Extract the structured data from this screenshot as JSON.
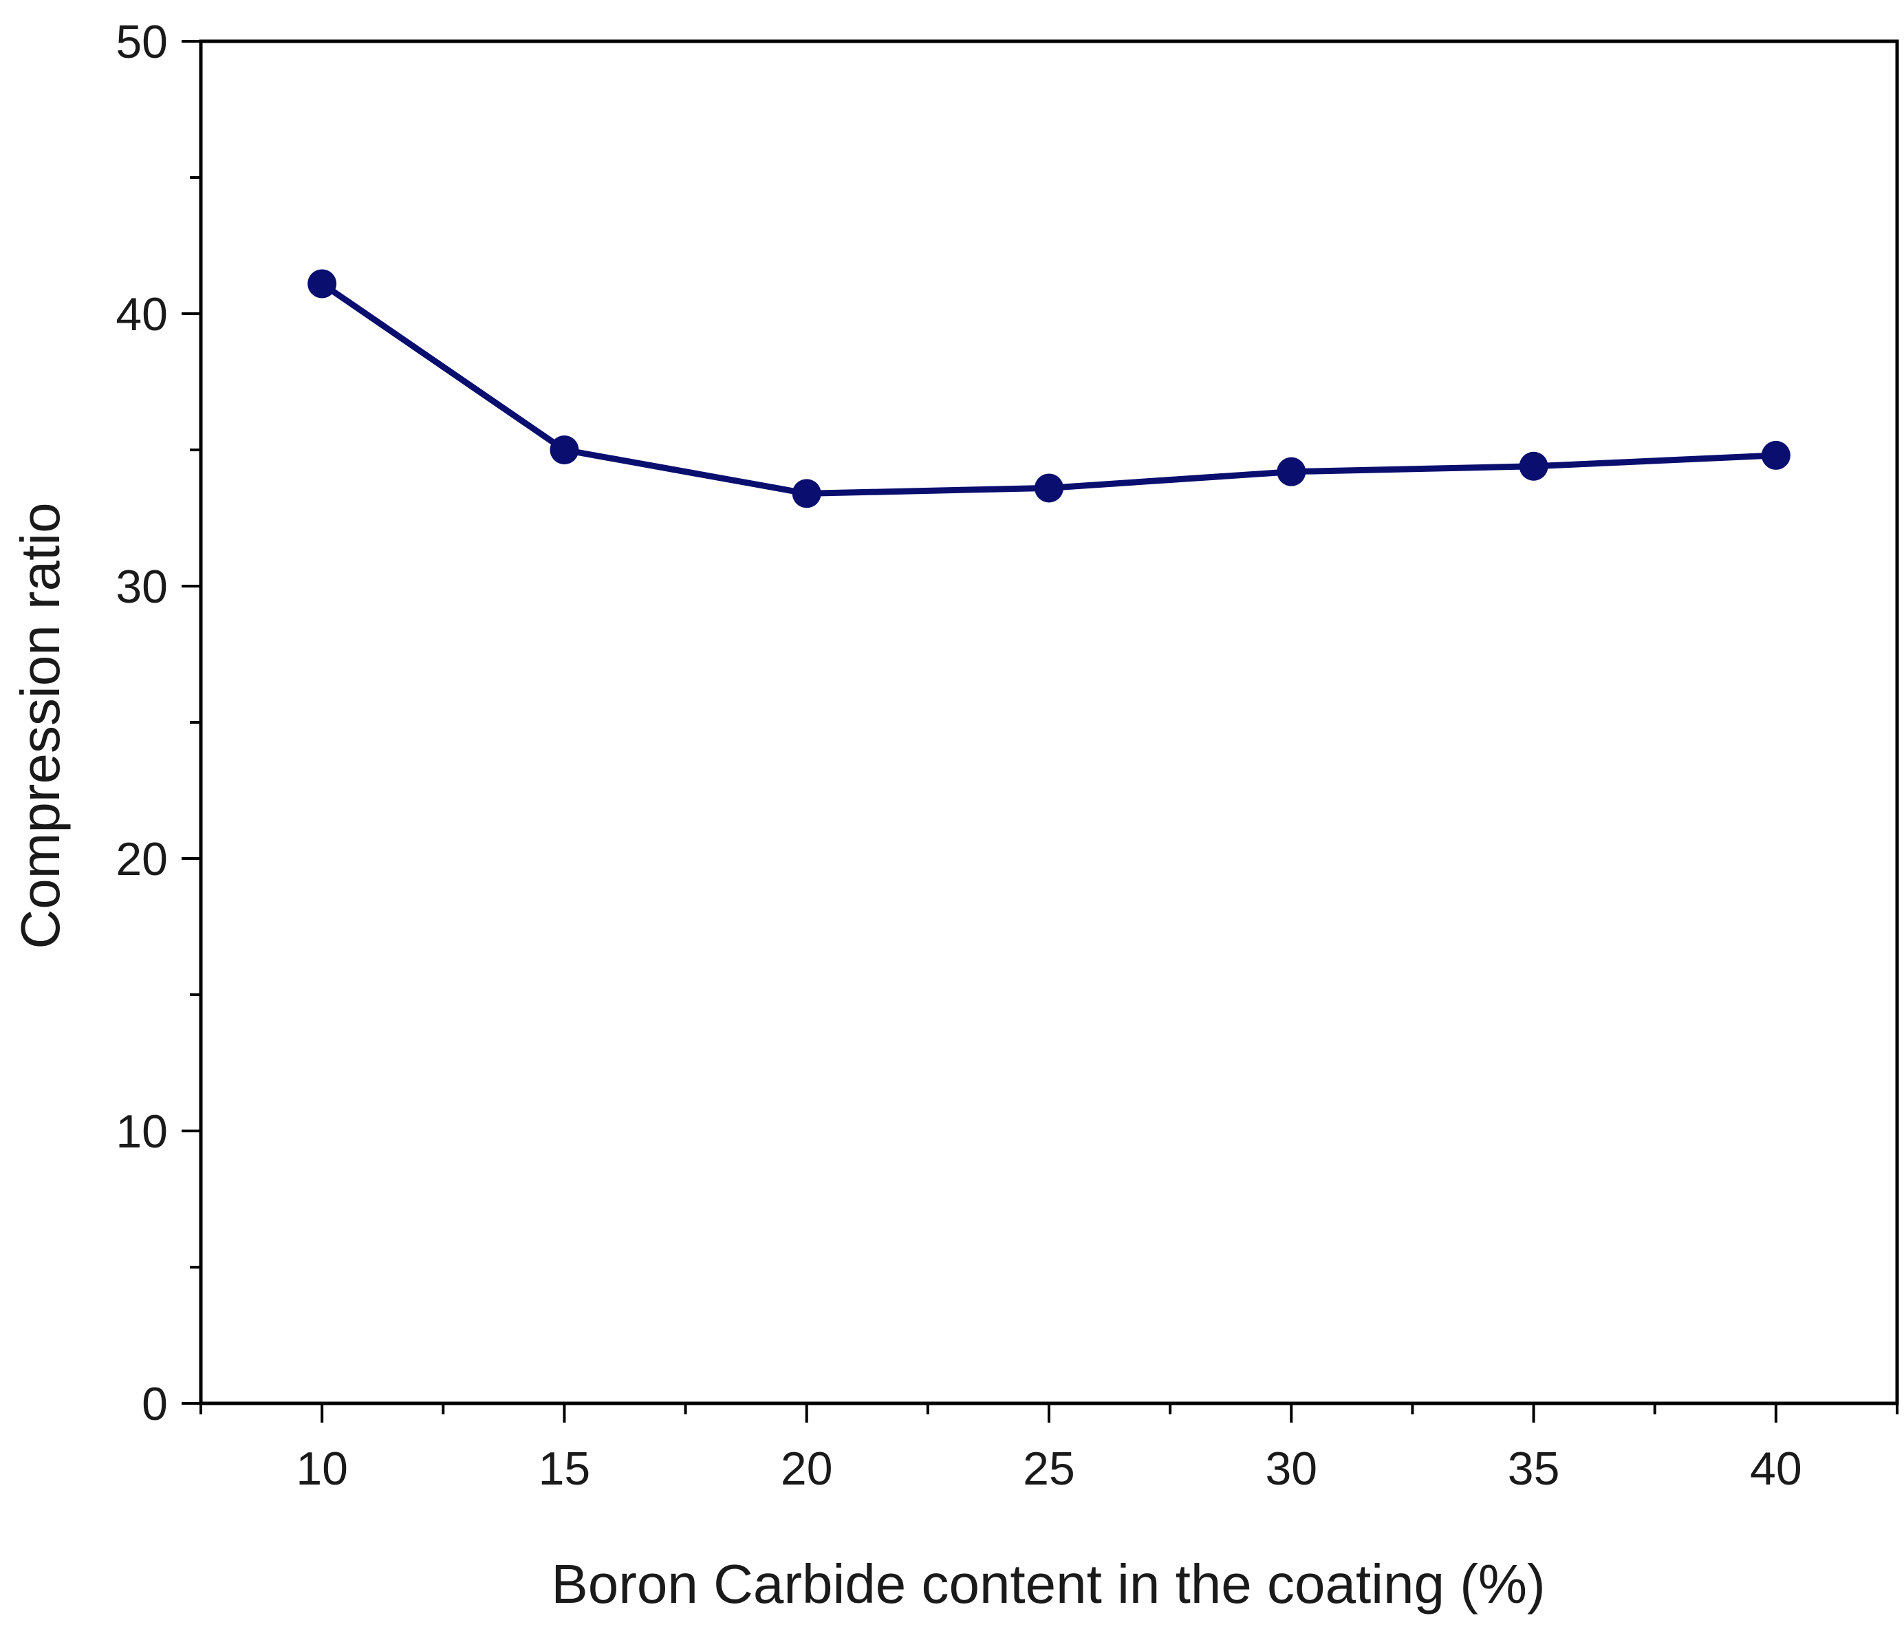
{
  "chart_data": {
    "type": "line",
    "title": "",
    "xlabel": "Boron Carbide content in the coating (%)",
    "ylabel": "Compression ratio",
    "xlim": [
      7.5,
      42.5
    ],
    "ylim": [
      0,
      50
    ],
    "xticks": [
      10,
      15,
      20,
      25,
      30,
      35,
      40
    ],
    "yticks": [
      0,
      10,
      20,
      30,
      40,
      50
    ],
    "grid": false,
    "series": [
      {
        "name": "Compression ratio",
        "color": "#0a0e6e",
        "x": [
          10,
          15,
          20,
          25,
          30,
          35,
          40
        ],
        "y": [
          41.1,
          35.0,
          33.4,
          33.6,
          34.2,
          34.4,
          34.8
        ]
      }
    ]
  }
}
